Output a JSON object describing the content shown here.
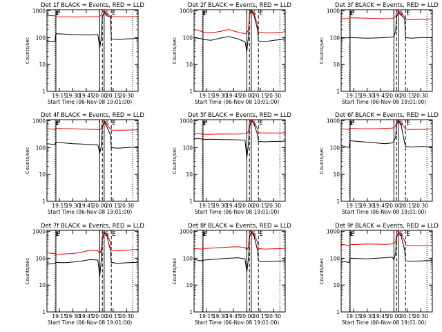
{
  "figure": {
    "ylabel": "Counts/sec",
    "xlabel": "Start Time (06-Nov-08 19:01:00)",
    "y_ticks": [
      "1000",
      "100",
      "10",
      "1"
    ],
    "x_ticks": [
      "19:15",
      "19:30",
      "19:45",
      "20:00",
      "20:15",
      "20:30"
    ],
    "series_colors": {
      "events": "#000000",
      "lld": "#e00000"
    },
    "x_range": [
      "19:01",
      "20:43"
    ],
    "y_range": [
      1,
      1100
    ],
    "y_scale": "log",
    "vlines": [
      {
        "time": "19:10",
        "label": "E",
        "style": "dotted"
      },
      {
        "time": "19:11",
        "label": "F",
        "style": "solid"
      },
      {
        "time": "20:00",
        "label": "",
        "style": "solid"
      },
      {
        "time": "20:03",
        "label": "",
        "style": "dashed"
      },
      {
        "time": "20:05",
        "label": "S",
        "style": "solid"
      },
      {
        "time": "20:13",
        "label": "E",
        "style": "dashed"
      },
      {
        "time": "20:37",
        "label": "",
        "style": "dotted"
      }
    ]
  },
  "chart_data": [
    {
      "type": "line",
      "title": "Det 1f BLACK = Events, RED = LLD",
      "x": [
        "19:01",
        "19:10",
        "19:11",
        "19:20",
        "19:30",
        "19:40",
        "19:50",
        "19:58",
        "20:00",
        "20:02",
        "20:03",
        "20:05",
        "20:08",
        "20:12",
        "20:13",
        "20:20",
        "20:30",
        "20:40",
        "20:43"
      ],
      "series": [
        {
          "values": [
            75,
            70,
            140,
            135,
            130,
            128,
            125,
            130,
            40,
            110,
            600,
            900,
            650,
            600,
            90,
            85,
            90,
            92,
            95
          ]
        },
        {
          "values": [
            680,
            650,
            600,
            590,
            585,
            590,
            600,
            610,
            620,
            700,
            900,
            1050,
            750,
            620,
            610,
            600,
            600,
            610,
            615
          ]
        }
      ]
    },
    {
      "type": "line",
      "title": "Det 2f BLACK = Events, RED = LLD",
      "x": [
        "19:01",
        "19:10",
        "19:11",
        "19:20",
        "19:30",
        "19:40",
        "19:50",
        "19:58",
        "20:00",
        "20:02",
        "20:03",
        "20:05",
        "20:08",
        "20:12",
        "20:13",
        "20:20",
        "20:30",
        "20:40",
        "20:43"
      ],
      "series": [
        {
          "values": [
            100,
            90,
            85,
            80,
            95,
            110,
            90,
            70,
            30,
            120,
            700,
            1000,
            700,
            200,
            75,
            70,
            80,
            85,
            95
          ]
        },
        {
          "values": [
            200,
            170,
            160,
            150,
            170,
            200,
            160,
            140,
            150,
            200,
            900,
            1100,
            800,
            300,
            160,
            150,
            150,
            160,
            170
          ]
        }
      ]
    },
    {
      "type": "line",
      "title": "Det 3f BLACK = Events, RED = LLD",
      "x": [
        "19:01",
        "19:10",
        "19:11",
        "19:20",
        "19:30",
        "19:40",
        "19:50",
        "19:58",
        "20:00",
        "20:02",
        "20:03",
        "20:05",
        "20:08",
        "20:12",
        "20:13",
        "20:20",
        "20:30",
        "20:40",
        "20:43"
      ],
      "series": [
        {
          "values": [
            95,
            100,
            100,
            98,
            95,
            97,
            100,
            105,
            110,
            180,
            600,
            900,
            700,
            500,
            100,
            95,
            100,
            100,
            102
          ]
        },
        {
          "values": [
            500,
            520,
            550,
            540,
            530,
            520,
            510,
            520,
            560,
            600,
            900,
            1050,
            800,
            600,
            480,
            470,
            480,
            490,
            500
          ]
        }
      ]
    },
    {
      "type": "line",
      "title": "Det 4f BLACK = Events, RED = LLD",
      "x": [
        "19:01",
        "19:10",
        "19:11",
        "19:20",
        "19:30",
        "19:40",
        "19:50",
        "19:58",
        "20:00",
        "20:02",
        "20:03",
        "20:05",
        "20:08",
        "20:12",
        "20:13",
        "20:20",
        "20:30",
        "20:40",
        "20:43"
      ],
      "series": [
        {
          "values": [
            140,
            130,
            160,
            150,
            140,
            135,
            130,
            125,
            60,
            120,
            600,
            900,
            600,
            300,
            100,
            95,
            100,
            105,
            110
          ]
        },
        {
          "values": [
            500,
            480,
            520,
            510,
            500,
            490,
            480,
            470,
            460,
            520,
            900,
            1050,
            700,
            500,
            450,
            440,
            450,
            460,
            470
          ]
        }
      ]
    },
    {
      "type": "line",
      "title": "Det 5f BLACK = Events, RED = LLD",
      "x": [
        "19:01",
        "19:10",
        "19:11",
        "19:20",
        "19:30",
        "19:40",
        "19:50",
        "19:58",
        "20:00",
        "20:02",
        "20:03",
        "20:05",
        "20:08",
        "20:12",
        "20:13",
        "20:20",
        "20:30",
        "20:40",
        "20:43"
      ],
      "series": [
        {
          "values": [
            220,
            210,
            200,
            205,
            200,
            198,
            195,
            190,
            40,
            150,
            600,
            1000,
            800,
            300,
            170,
            165,
            170,
            172,
            175
          ]
        },
        {
          "values": [
            330,
            320,
            310,
            315,
            320,
            318,
            320,
            330,
            340,
            400,
            900,
            1100,
            900,
            500,
            360,
            350,
            350,
            355,
            360
          ]
        }
      ]
    },
    {
      "type": "line",
      "title": "Det 6f BLACK = Events, RED = LLD",
      "x": [
        "19:01",
        "19:10",
        "19:11",
        "19:20",
        "19:30",
        "19:40",
        "19:50",
        "19:58",
        "20:00",
        "20:02",
        "20:03",
        "20:05",
        "20:08",
        "20:12",
        "20:13",
        "20:20",
        "20:30",
        "20:40",
        "20:43"
      ],
      "series": [
        {
          "values": [
            120,
            100,
            180,
            170,
            160,
            150,
            140,
            150,
            170,
            250,
            700,
            1000,
            700,
            150,
            110,
            105,
            110,
            108,
            110
          ]
        },
        {
          "values": [
            500,
            480,
            520,
            510,
            500,
            510,
            520,
            530,
            560,
            650,
            900,
            1100,
            800,
            560,
            480,
            470,
            480,
            490,
            500
          ]
        }
      ]
    },
    {
      "type": "line",
      "title": "Det 7f BLACK = Events, RED = LLD",
      "x": [
        "19:01",
        "19:10",
        "19:11",
        "19:20",
        "19:30",
        "19:40",
        "19:50",
        "19:58",
        "20:00",
        "20:02",
        "20:03",
        "20:05",
        "20:08",
        "20:12",
        "20:13",
        "20:20",
        "20:30",
        "20:40",
        "20:43"
      ],
      "series": [
        {
          "values": [
            60,
            65,
            70,
            68,
            72,
            80,
            90,
            85,
            20,
            100,
            500,
            900,
            700,
            200,
            70,
            65,
            68,
            70,
            72
          ]
        },
        {
          "values": [
            160,
            150,
            140,
            145,
            150,
            170,
            200,
            190,
            150,
            220,
            800,
            1050,
            800,
            400,
            200,
            190,
            200,
            210,
            220
          ]
        }
      ]
    },
    {
      "type": "line",
      "title": "Det 8f BLACK = Events, RED = LLD",
      "x": [
        "19:01",
        "19:10",
        "19:11",
        "19:20",
        "19:30",
        "19:40",
        "19:50",
        "19:58",
        "20:00",
        "20:02",
        "20:03",
        "20:05",
        "20:08",
        "20:12",
        "20:13",
        "20:20",
        "20:30",
        "20:40",
        "20:43"
      ],
      "series": [
        {
          "values": [
            90,
            80,
            85,
            90,
            95,
            100,
            105,
            95,
            30,
            110,
            600,
            950,
            700,
            200,
            80,
            75,
            78,
            80,
            85
          ]
        },
        {
          "values": [
            230,
            220,
            230,
            240,
            250,
            260,
            270,
            250,
            200,
            280,
            900,
            1100,
            800,
            400,
            230,
            220,
            225,
            230,
            240
          ]
        }
      ]
    },
    {
      "type": "line",
      "title": "Det 9f BLACK = Events, RED = LLD",
      "x": [
        "19:01",
        "19:10",
        "19:11",
        "19:20",
        "19:30",
        "19:40",
        "19:50",
        "19:58",
        "20:00",
        "20:02",
        "20:03",
        "20:05",
        "20:08",
        "20:12",
        "20:13",
        "20:20",
        "20:30",
        "20:40",
        "20:43"
      ],
      "series": [
        {
          "values": [
            80,
            70,
            100,
            98,
            95,
            100,
            105,
            110,
            90,
            160,
            600,
            900,
            700,
            200,
            80,
            78,
            80,
            82,
            85
          ]
        },
        {
          "values": [
            330,
            300,
            320,
            330,
            340,
            335,
            330,
            340,
            350,
            420,
            900,
            1050,
            800,
            450,
            300,
            290,
            295,
            300,
            305
          ]
        }
      ]
    }
  ]
}
